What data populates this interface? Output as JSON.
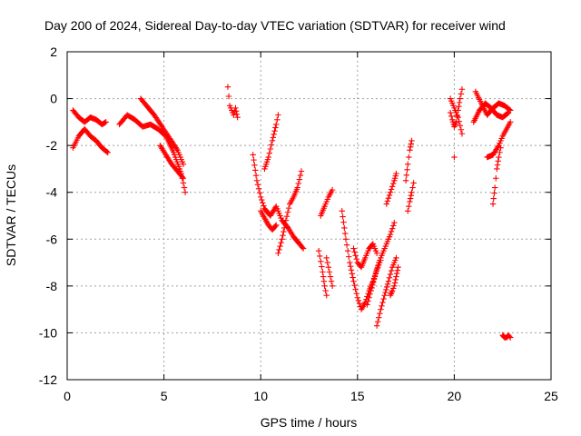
{
  "chart_data": {
    "type": "scatter",
    "title": "Day 200 of 2024, Sidereal Day-to-day VTEC variation (SDTVAR) for receiver wind",
    "xlabel": "GPS time / hours",
    "ylabel": "SDTVAR / TECUs",
    "xlim": [
      0,
      25
    ],
    "ylim": [
      -12,
      2
    ],
    "xticks": [
      0,
      5,
      10,
      15,
      20,
      25
    ],
    "yticks": [
      -12,
      -10,
      -8,
      -6,
      -4,
      -2,
      0,
      2
    ],
    "grid": true,
    "marker": "+",
    "colors": {
      "series": "#ff0000",
      "grid": "#a0a0a0",
      "axes": "#000000"
    },
    "series": [
      {
        "name": "SDTVAR",
        "tracks": [
          {
            "x": [
              0.3,
              0.6,
              0.9,
              1.2,
              1.5,
              1.8,
              2.0
            ],
            "y": [
              -0.5,
              -0.8,
              -1.0,
              -0.8,
              -0.9,
              -1.1,
              -1.0
            ]
          },
          {
            "x": [
              0.3,
              0.6,
              0.9,
              1.2,
              1.5,
              1.8,
              2.1
            ],
            "y": [
              -2.1,
              -1.6,
              -1.3,
              -1.6,
              -1.8,
              -2.1,
              -2.3
            ]
          },
          {
            "x": [
              2.7,
              3.1,
              3.5,
              3.9,
              4.3,
              4.7,
              5.1,
              5.5,
              5.9,
              6.1
            ],
            "y": [
              -1.1,
              -0.7,
              -0.9,
              -1.2,
              -1.1,
              -1.3,
              -1.6,
              -2.3,
              -3.2,
              -4.0
            ]
          },
          {
            "x": [
              3.8,
              4.1,
              4.5,
              4.9,
              5.3,
              5.7,
              6.0
            ],
            "y": [
              0.0,
              -0.3,
              -0.7,
              -1.2,
              -1.7,
              -2.2,
              -2.8
            ]
          },
          {
            "x": [
              4.8,
              5.1,
              5.4,
              5.7,
              6.0
            ],
            "y": [
              -2.0,
              -2.4,
              -2.8,
              -3.1,
              -3.4
            ]
          },
          {
            "x": [
              8.3,
              8.4,
              8.5,
              8.6,
              8.7,
              8.8
            ],
            "y": [
              0.5,
              -0.3,
              -0.5,
              -0.7,
              -0.4,
              -0.8
            ]
          },
          {
            "x": [
              9.6,
              9.8,
              10.0,
              10.2,
              10.5,
              10.8,
              11.1,
              11.4,
              11.7,
              12.0,
              12.2
            ],
            "y": [
              -2.4,
              -3.5,
              -4.2,
              -4.7,
              -5.0,
              -4.6,
              -5.2,
              -5.5,
              -5.9,
              -6.2,
              -6.4
            ]
          },
          {
            "x": [
              10.0,
              10.2,
              10.4,
              10.6,
              10.8
            ],
            "y": [
              -4.8,
              -5.1,
              -5.4,
              -5.6,
              -5.4
            ]
          },
          {
            "x": [
              10.2,
              10.4,
              10.6,
              10.8,
              10.9
            ],
            "y": [
              -3.0,
              -2.5,
              -1.8,
              -1.1,
              -0.7
            ]
          },
          {
            "x": [
              10.9,
              11.1,
              11.3,
              11.5,
              11.7,
              11.9,
              12.1
            ],
            "y": [
              -6.6,
              -6.0,
              -5.2,
              -4.5,
              -4.2,
              -3.8,
              -3.1
            ]
          },
          {
            "x": [
              13.0,
              13.2,
              13.3,
              13.4
            ],
            "y": [
              -6.5,
              -7.4,
              -8.0,
              -8.4
            ]
          },
          {
            "x": [
              13.1,
              13.3,
              13.5,
              13.7
            ],
            "y": [
              -5.0,
              -4.6,
              -4.2,
              -3.9
            ]
          },
          {
            "x": [
              13.4,
              13.5,
              13.6,
              13.7
            ],
            "y": [
              -6.8,
              -7.2,
              -7.6,
              -8.0
            ]
          },
          {
            "x": [
              14.2,
              14.4,
              14.6,
              14.8,
              15.0,
              15.2,
              15.4,
              15.6,
              15.8,
              16.0,
              16.2
            ],
            "y": [
              -4.8,
              -6.0,
              -7.0,
              -7.8,
              -8.5,
              -9.0,
              -8.7,
              -8.2,
              -7.8,
              -7.3,
              -6.9
            ]
          },
          {
            "x": [
              14.8,
              15.0,
              15.2,
              15.4,
              15.6,
              15.8,
              16.0
            ],
            "y": [
              -6.4,
              -7.0,
              -7.2,
              -6.8,
              -6.4,
              -6.2,
              -6.6
            ]
          },
          {
            "x": [
              15.5,
              15.7,
              15.9,
              16.1,
              16.3,
              16.5,
              16.7,
              16.9
            ],
            "y": [
              -8.8,
              -8.2,
              -7.6,
              -7.0,
              -6.6,
              -6.2,
              -5.8,
              -5.3
            ]
          },
          {
            "x": [
              16.0,
              16.2,
              16.4,
              16.6,
              16.8,
              17.0
            ],
            "y": [
              -9.7,
              -9.0,
              -8.4,
              -7.8,
              -7.2,
              -6.8
            ]
          },
          {
            "x": [
              16.7,
              16.8,
              16.9,
              17.0,
              17.1
            ],
            "y": [
              -8.4,
              -8.2,
              -8.0,
              -7.6,
              -7.2
            ]
          },
          {
            "x": [
              16.5,
              16.7,
              16.9,
              17.0
            ],
            "y": [
              -4.5,
              -4.0,
              -3.5,
              -3.2
            ]
          },
          {
            "x": [
              17.5,
              17.6,
              17.7,
              17.8
            ],
            "y": [
              -3.5,
              -2.8,
              -2.2,
              -1.8
            ]
          },
          {
            "x": [
              17.6,
              17.7,
              17.8,
              17.9
            ],
            "y": [
              -4.8,
              -4.4,
              -4.0,
              -3.6
            ]
          },
          {
            "x": [
              19.8,
              19.9,
              20.0,
              20.1,
              20.2,
              20.3,
              20.4
            ],
            "y": [
              -0.6,
              -0.9,
              -1.2,
              -1.0,
              -0.5,
              0.0,
              0.4
            ]
          },
          {
            "x": [
              19.8,
              20.0,
              20.2,
              20.4
            ],
            "y": [
              0.0,
              -0.4,
              -0.8,
              -1.5
            ]
          },
          {
            "x": [
              20.0
            ],
            "y": [
              -2.5
            ]
          },
          {
            "x": [
              21.1,
              21.4,
              21.7,
              22.0,
              22.3,
              22.6,
              22.9
            ],
            "y": [
              0.3,
              -0.2,
              -0.7,
              -0.4,
              -0.2,
              -0.3,
              -0.5
            ]
          },
          {
            "x": [
              21.0,
              21.3,
              21.6,
              21.9,
              22.2,
              22.5,
              22.8
            ],
            "y": [
              -1.0,
              -0.5,
              -0.2,
              -0.4,
              -0.7,
              -0.8,
              -0.6
            ]
          },
          {
            "x": [
              22.0,
              22.1,
              22.2,
              22.3,
              22.4
            ],
            "y": [
              -4.5,
              -3.8,
              -3.0,
              -2.5,
              -2.1
            ]
          },
          {
            "x": [
              21.7,
              22.0,
              22.3,
              22.5,
              22.7,
              22.9
            ],
            "y": [
              -2.5,
              -2.4,
              -2.0,
              -1.6,
              -1.3,
              -1.0
            ]
          },
          {
            "x": [
              22.5,
              22.6,
              22.7,
              22.8,
              22.9
            ],
            "y": [
              -10.1,
              -10.2,
              -10.2,
              -10.1,
              -10.2
            ]
          }
        ]
      }
    ]
  }
}
